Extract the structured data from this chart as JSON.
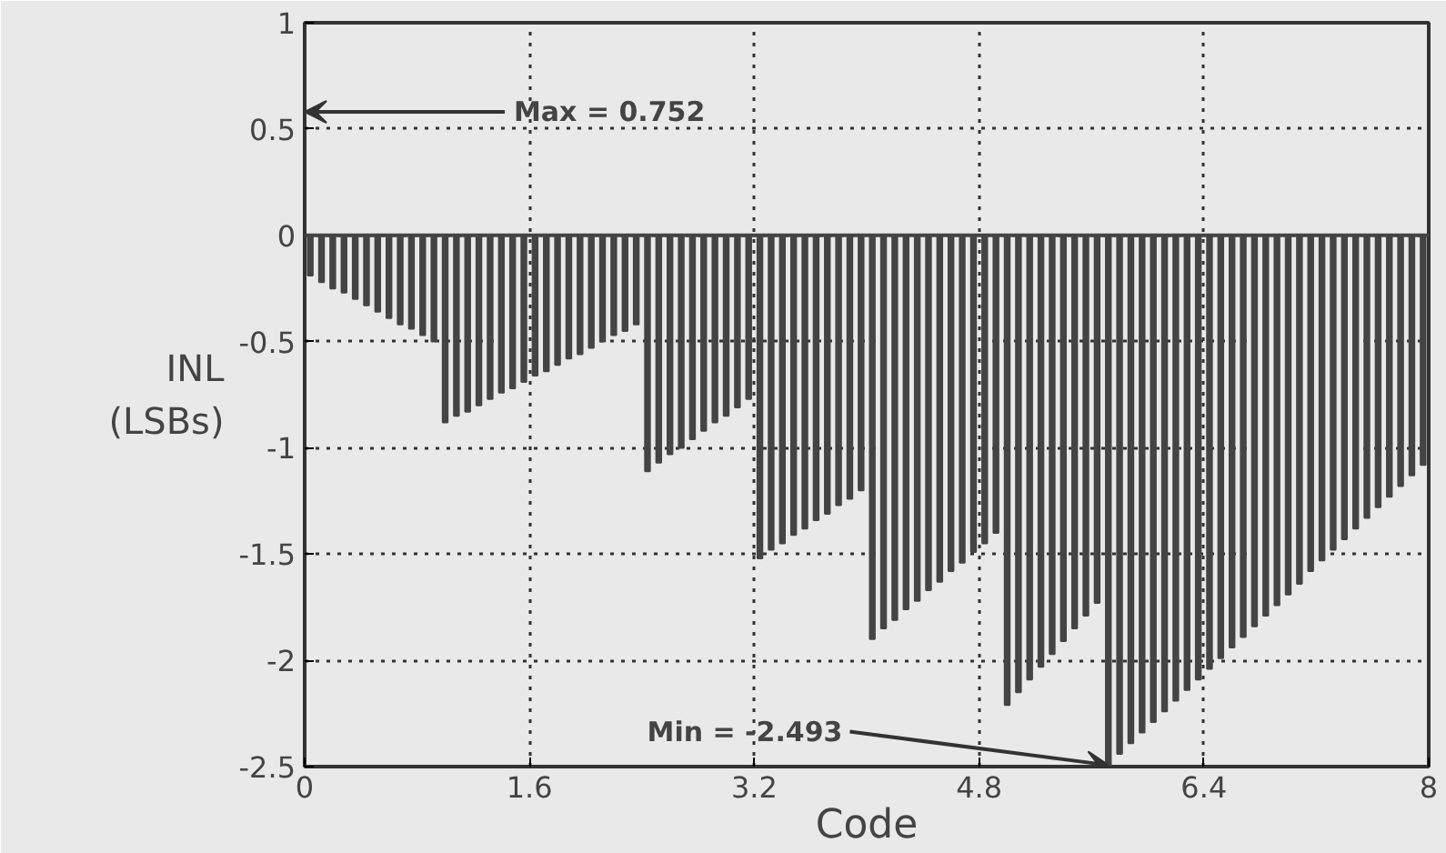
{
  "chart_data": {
    "type": "bar",
    "color": "#444444",
    "xlabel": "Code",
    "ylabel": "INL\n(LSBs)",
    "x": [
      0.04,
      0.12,
      0.2,
      0.28,
      0.36,
      0.44,
      0.52,
      0.6,
      0.68,
      0.76,
      0.84,
      0.92,
      1.0,
      1.08,
      1.16,
      1.24,
      1.32,
      1.4,
      1.48,
      1.56,
      1.64,
      1.72,
      1.8,
      1.88,
      1.96,
      2.04,
      2.12,
      2.2,
      2.28,
      2.36,
      2.44,
      2.52,
      2.6,
      2.68,
      2.76,
      2.84,
      2.92,
      3.0,
      3.08,
      3.16,
      3.24,
      3.32,
      3.4,
      3.48,
      3.56,
      3.64,
      3.72,
      3.8,
      3.88,
      3.96,
      4.04,
      4.12,
      4.2,
      4.28,
      4.36,
      4.44,
      4.52,
      4.6,
      4.68,
      4.76,
      4.84,
      4.92,
      5.0,
      5.08,
      5.16,
      5.24,
      5.32,
      5.4,
      5.48,
      5.56,
      5.64,
      5.72,
      5.8,
      5.88,
      5.96,
      6.04,
      6.12,
      6.2,
      6.28,
      6.36,
      6.44,
      6.52,
      6.6,
      6.68,
      6.76,
      6.84,
      6.92,
      7.0,
      7.08,
      7.16,
      7.24,
      7.32,
      7.4,
      7.48,
      7.56,
      7.64,
      7.72,
      7.8,
      7.88,
      7.96
    ],
    "values": [
      -0.19,
      -0.22,
      -0.25,
      -0.27,
      -0.3,
      -0.33,
      -0.36,
      -0.39,
      -0.42,
      -0.44,
      -0.47,
      -0.5,
      -0.88,
      -0.85,
      -0.83,
      -0.8,
      -0.77,
      -0.74,
      -0.72,
      -0.69,
      -0.66,
      -0.64,
      -0.61,
      -0.58,
      -0.56,
      -0.53,
      -0.5,
      -0.47,
      -0.45,
      -0.42,
      -1.11,
      -1.07,
      -1.03,
      -1.0,
      -0.96,
      -0.92,
      -0.88,
      -0.85,
      -0.81,
      -0.77,
      -1.52,
      -1.48,
      -1.45,
      -1.41,
      -1.38,
      -1.34,
      -1.31,
      -1.27,
      -1.24,
      -1.2,
      -1.9,
      -1.85,
      -1.81,
      -1.76,
      -1.72,
      -1.67,
      -1.63,
      -1.58,
      -1.54,
      -1.49,
      -1.45,
      -1.4,
      -2.21,
      -2.15,
      -2.09,
      -2.03,
      -1.97,
      -1.91,
      -1.85,
      -1.79,
      -1.73,
      -2.493,
      -2.44,
      -2.39,
      -2.34,
      -2.29,
      -2.24,
      -2.19,
      -2.14,
      -2.09,
      -2.04,
      -1.99,
      -1.94,
      -1.89,
      -1.84,
      -1.79,
      -1.74,
      -1.69,
      -1.64,
      -1.58,
      -1.53,
      -1.48,
      -1.43,
      -1.38,
      -1.33,
      -1.28,
      -1.23,
      -1.18,
      -1.13,
      -1.08
    ],
    "xlim": [
      0,
      8
    ],
    "ylim": [
      -2.5,
      1
    ],
    "xticks": [
      0,
      1.6,
      3.2,
      4.8,
      6.4,
      8
    ],
    "yticks": [
      -2.5,
      -2,
      -1.5,
      -1,
      -0.5,
      0,
      0.5,
      1
    ],
    "grid": true,
    "annotations": [
      "Max = 0.752",
      {
        "text": "Min = -2.493",
        "x": 5.72,
        "y": -2.493
      }
    ]
  }
}
